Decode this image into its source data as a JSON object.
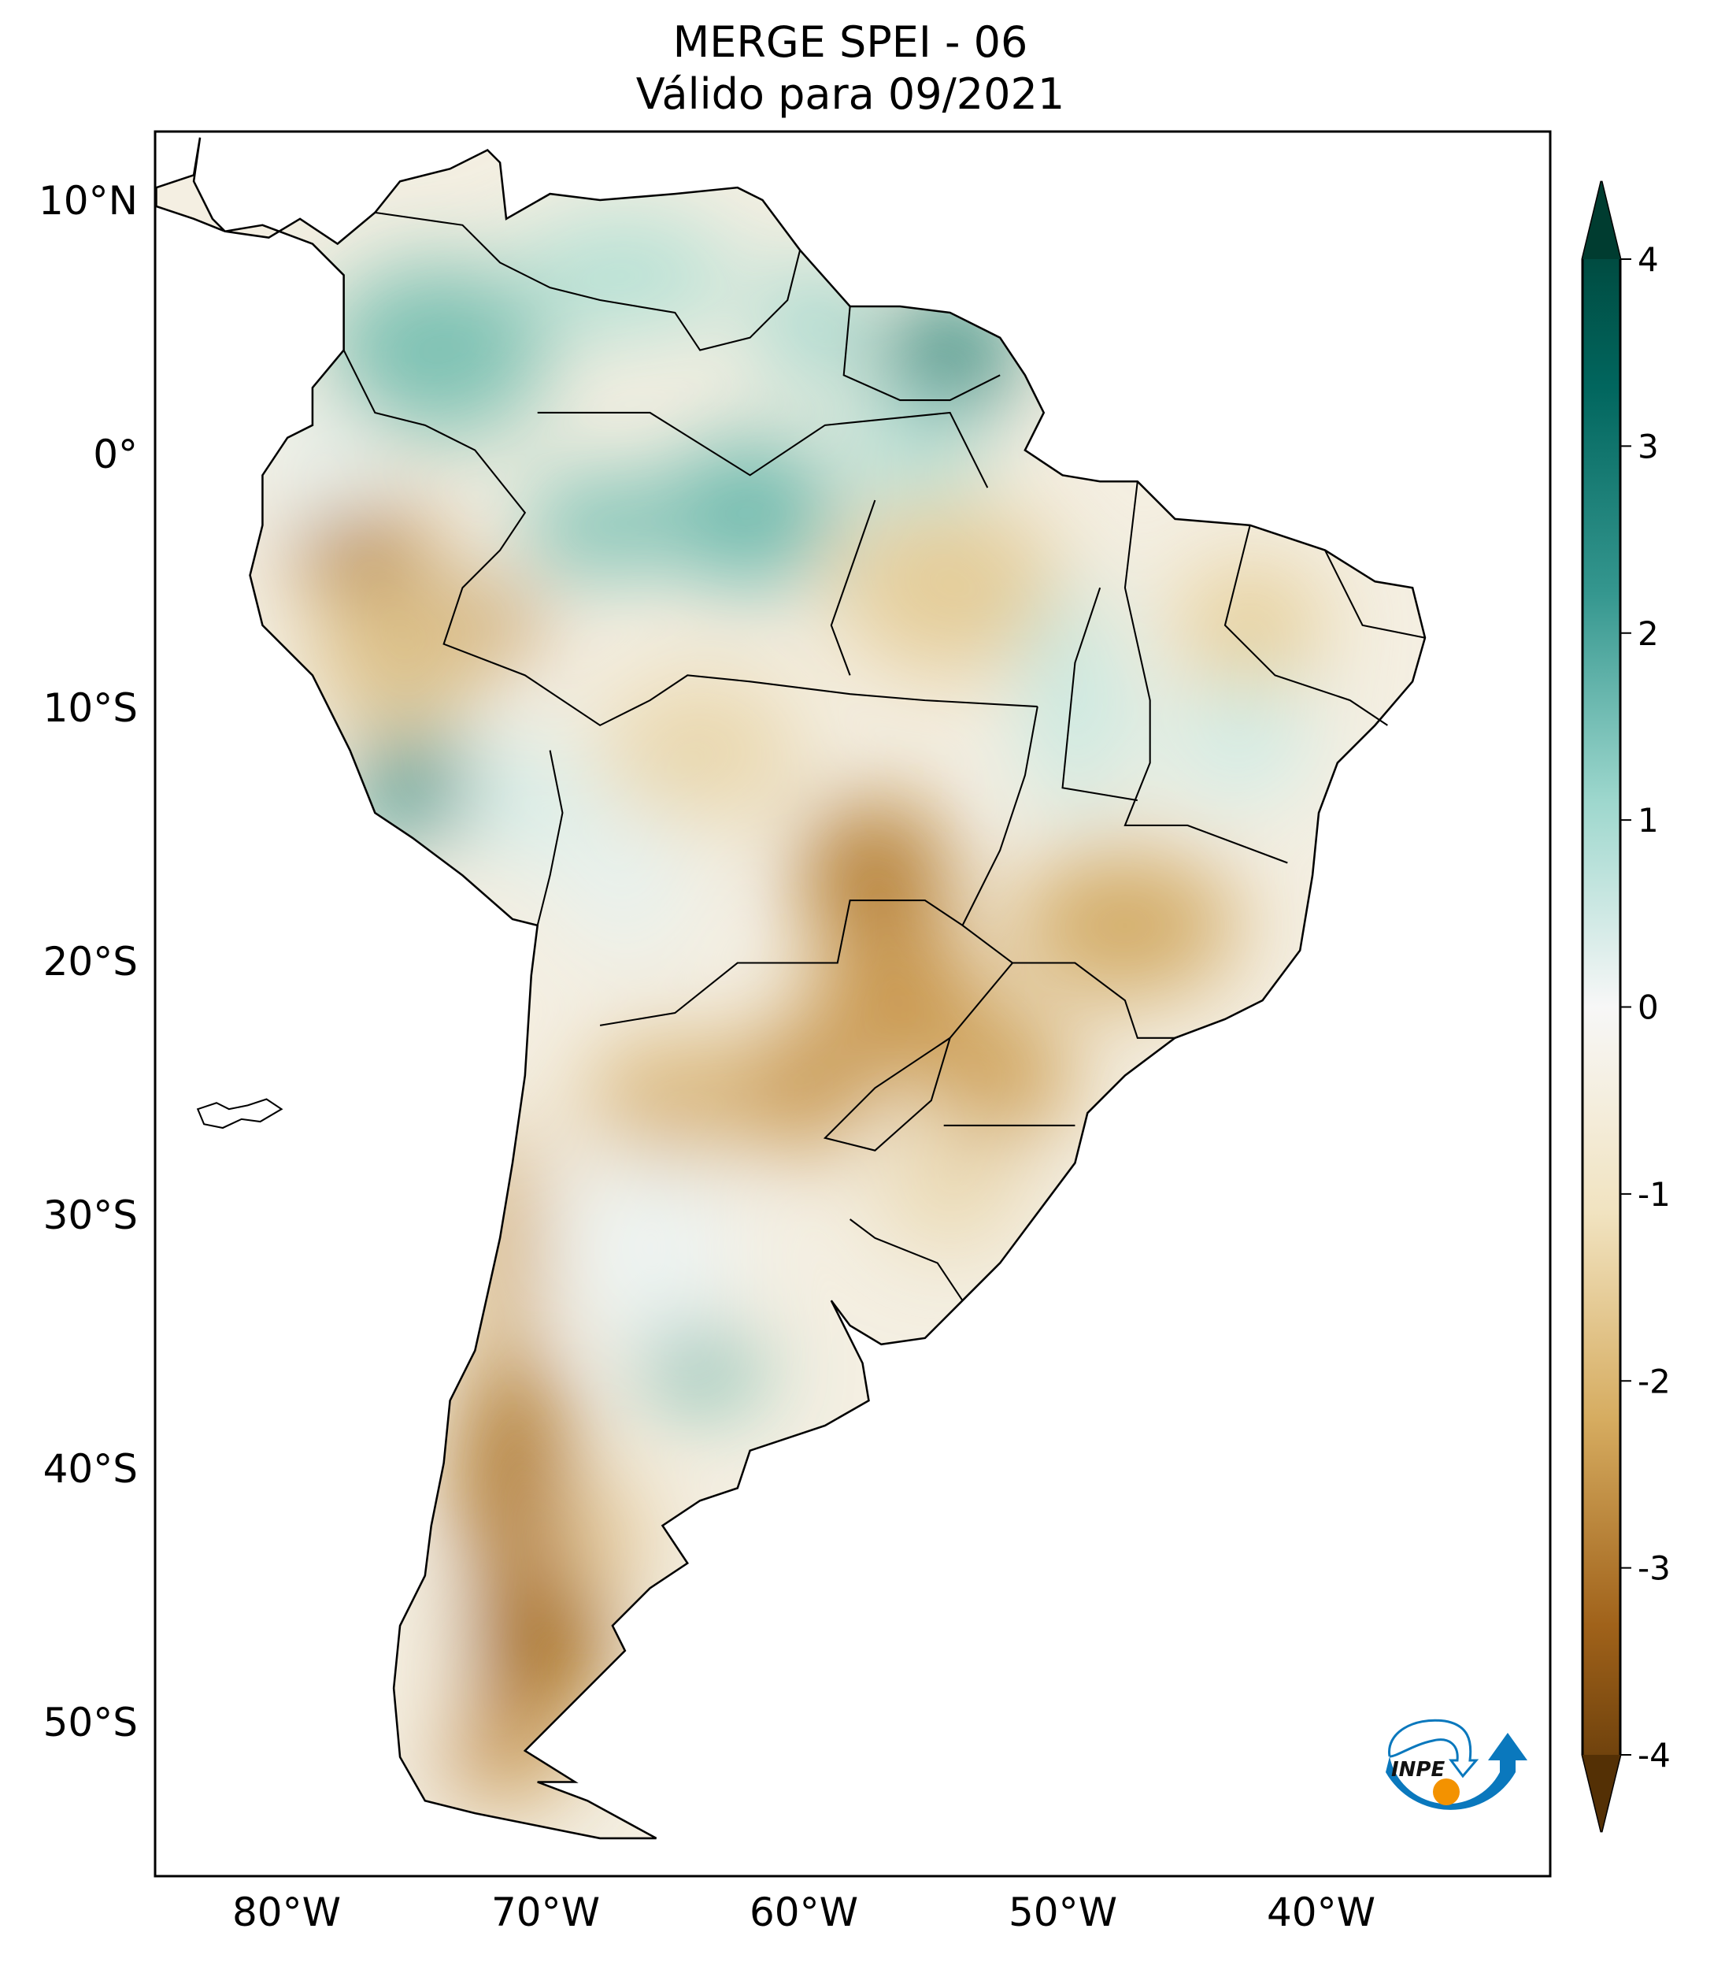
{
  "title": {
    "line1": "MERGE   SPEI - 06",
    "line2": "Válido para 09/2021"
  },
  "map": {
    "lon_range": [
      -85,
      -31
    ],
    "lat_range": [
      -56,
      12.7
    ],
    "lon_ticks": [
      "80°W",
      "70°W",
      "60°W",
      "50°W",
      "40°W"
    ],
    "lat_ticks": [
      "10°N",
      "0°",
      "10°S",
      "20°S",
      "30°S",
      "40°S",
      "50°S"
    ],
    "colormap": "BrBG",
    "land_color_dry": "#8c510a",
    "land_color_wet": "#01665e"
  },
  "colorbar": {
    "range": [
      -4,
      4
    ],
    "extend": "both",
    "ticks": [
      "4",
      "3",
      "2",
      "1",
      "0",
      "-1",
      "-2",
      "-3",
      "-4"
    ]
  },
  "logo": {
    "text": "INPE",
    "color_blue": "#0a78bd",
    "color_orange": "#f39200"
  }
}
